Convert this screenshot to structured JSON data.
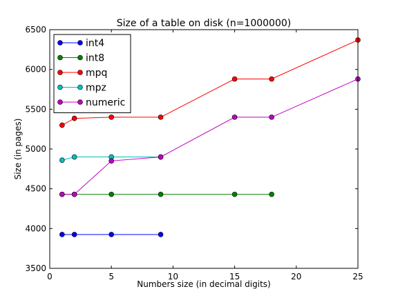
{
  "chart_data": {
    "type": "line",
    "title": "Size of a table on disk (n=1000000)",
    "xlabel": "Numbers size (in decimal digits)",
    "ylabel": "Size (in pages)",
    "xlim": [
      0,
      25
    ],
    "ylim": [
      3500,
      6500
    ],
    "xticks": [
      "0",
      "5",
      "10",
      "15",
      "20",
      "25"
    ],
    "yticks": [
      "3500",
      "4000",
      "4500",
      "5000",
      "5500",
      "6000",
      "6500"
    ],
    "grid": false,
    "legend_position": "top-left",
    "series": [
      {
        "name": "int4",
        "color": "#0000ff",
        "x": [
          1,
          2,
          5,
          9
        ],
        "y": [
          3925,
          3925,
          3925,
          3925
        ]
      },
      {
        "name": "int8",
        "color": "#008000",
        "x": [
          1,
          2,
          5,
          9,
          15,
          18
        ],
        "y": [
          4430,
          4430,
          4430,
          4430,
          4430,
          4430
        ]
      },
      {
        "name": "mpq",
        "color": "#ff0000",
        "x": [
          1,
          2,
          5,
          9,
          15,
          18,
          25
        ],
        "y": [
          5300,
          5385,
          5400,
          5400,
          5880,
          5880,
          6370
        ]
      },
      {
        "name": "mpz",
        "color": "#00bfbf",
        "x": [
          1,
          2,
          5,
          9
        ],
        "y": [
          4860,
          4900,
          4900,
          4900
        ]
      },
      {
        "name": "numeric",
        "color": "#bf00bf",
        "x": [
          1,
          2,
          5,
          9,
          15,
          18,
          25
        ],
        "y": [
          4430,
          4430,
          4850,
          4900,
          5400,
          5400,
          5880
        ]
      }
    ]
  }
}
